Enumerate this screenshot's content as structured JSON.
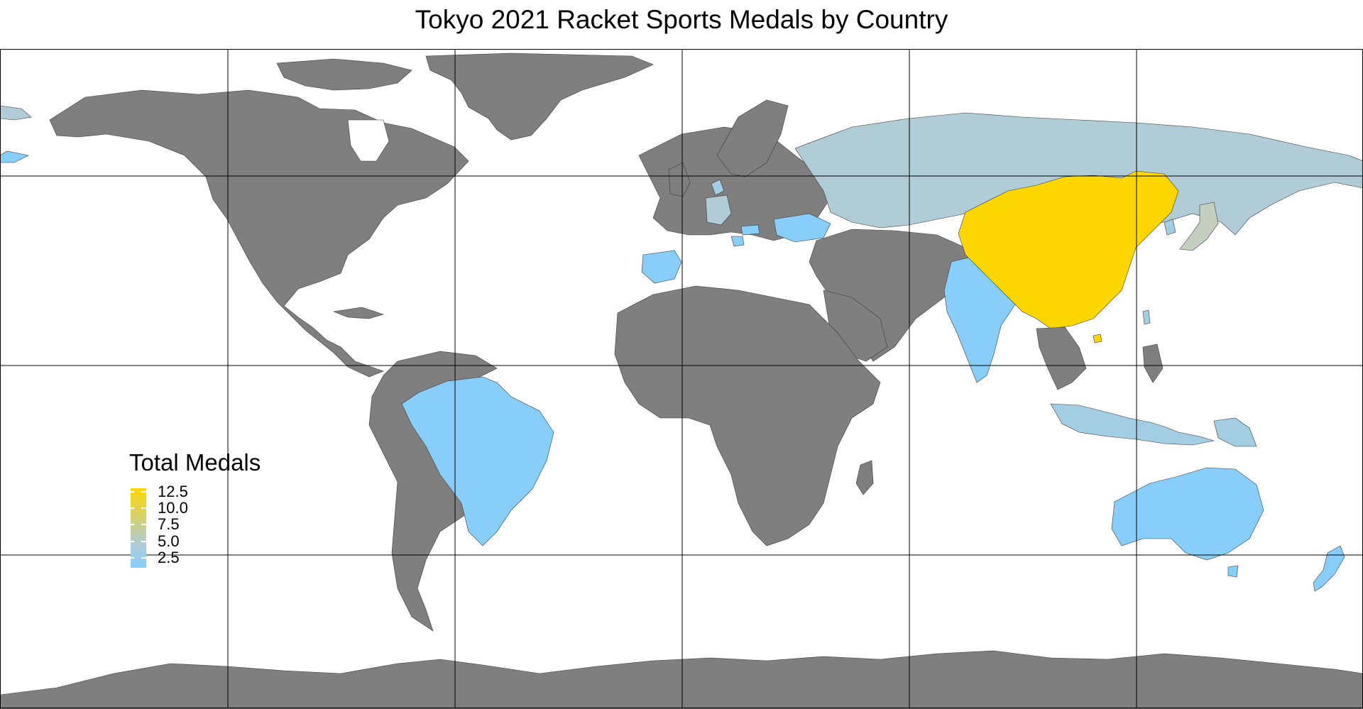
{
  "title": "Tokyo 2021 Racket Sports Medals by Country",
  "legend": {
    "title": "Total Medals",
    "breaks": [
      "12.5",
      "10.0",
      "7.5",
      "5.0",
      "2.5"
    ]
  },
  "colors": {
    "no_data": "#7f7f7f",
    "scale_low": "#87cefa",
    "scale_mid": "#b0ccd6",
    "scale_high": "#ffd700",
    "graticule": "#000000",
    "border": "#3a3a3a"
  },
  "chart_data": {
    "type": "choropleth",
    "title": "Tokyo 2021 Racket Sports Medals by Country",
    "legend_title": "Total Medals",
    "legend_placement": "left",
    "value_range": [
      1,
      13
    ],
    "grid": true,
    "regions": [
      {
        "name": "China",
        "value": 13
      },
      {
        "name": "Japan",
        "value": 5
      },
      {
        "name": "Russia",
        "value": 4
      },
      {
        "name": "Germany",
        "value": 4
      },
      {
        "name": "Denmark",
        "value": 3
      },
      {
        "name": "Chinese Taipei",
        "value": 3
      },
      {
        "name": "Spain",
        "value": 2
      },
      {
        "name": "Indonesia",
        "value": 2
      },
      {
        "name": "South Korea",
        "value": 2
      },
      {
        "name": "Papua New Guinea",
        "value": 2
      },
      {
        "name": "Ukraine",
        "value": 1
      },
      {
        "name": "India",
        "value": 1
      },
      {
        "name": "Brazil",
        "value": 1
      },
      {
        "name": "Australia",
        "value": 1
      },
      {
        "name": "Croatia",
        "value": 1
      },
      {
        "name": "New Zealand",
        "value": 1
      },
      {
        "name": "Hungary",
        "value": 1
      }
    ]
  }
}
